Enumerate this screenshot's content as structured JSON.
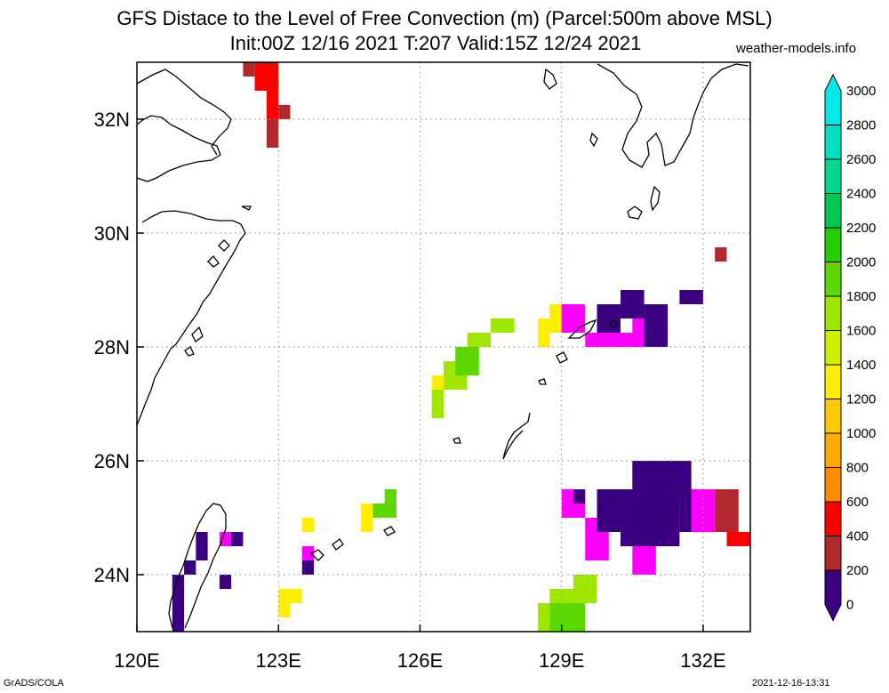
{
  "header": {
    "title_line1": "GFS Distace to the Level of Free Convection (m) (Parcel:500m above MSL)",
    "title_line2": "Init:00Z 12/16 2021 T:207 Valid:15Z 12/24 2021",
    "site": "weather-models.info"
  },
  "footer": {
    "credit": "GrADS/COLA",
    "timestamp": "2021-12-16-13:31"
  },
  "map": {
    "lon_range": [
      120,
      133
    ],
    "lat_range": [
      23,
      33
    ],
    "lon_ticks": [
      "120E",
      "123E",
      "126E",
      "129E",
      "132E"
    ],
    "lat_ticks": [
      "24N",
      "26N",
      "28N",
      "30N",
      "32N"
    ],
    "gridlines": "dotted"
  },
  "colorbar": {
    "labels": [
      "0",
      "200",
      "400",
      "600",
      "800",
      "1000",
      "1200",
      "1400",
      "1600",
      "1800",
      "2000",
      "2200",
      "2400",
      "2600",
      "2800",
      "3000"
    ],
    "colors": [
      "#3a0080",
      "#ff00ff",
      "#b2282c",
      "#ff0000",
      "#ff8c00",
      "#ffaa00",
      "#ffc800",
      "#ffee00",
      "#cfee00",
      "#a0e600",
      "#5ad800",
      "#22d000",
      "#00c850",
      "#00d890",
      "#00e0c0",
      "#00e8e8"
    ]
  },
  "fields": [
    {
      "level": "400",
      "cells": [
        [
          122.25,
          32.75,
          122.5,
          33
        ],
        [
          122.5,
          32.5,
          122.75,
          32.75
        ],
        [
          122.75,
          31.5,
          123,
          32.75
        ],
        [
          123,
          32,
          123.25,
          32.25
        ],
        [
          131.75,
          28.75,
          132,
          29
        ],
        [
          132.25,
          29.5,
          132.5,
          29.75
        ],
        [
          132.25,
          24.75,
          132.75,
          25.5
        ]
      ]
    },
    {
      "level": "600",
      "cells": [
        [
          122.5,
          32.5,
          123,
          33
        ],
        [
          122.75,
          32,
          123,
          32.5
        ],
        [
          132.5,
          24.5,
          133,
          24.75
        ]
      ]
    },
    {
      "level": "200",
      "cells": [
        [
          128.75,
          28.25,
          129.5,
          28.75
        ],
        [
          129.5,
          28,
          130.25,
          28.25
        ],
        [
          130.25,
          28,
          130.75,
          28.25
        ],
        [
          130.5,
          28.25,
          130.75,
          28.5
        ],
        [
          129,
          25,
          129.5,
          25.5
        ],
        [
          129.5,
          24.25,
          130,
          25
        ],
        [
          130.5,
          24,
          131,
          24.5
        ],
        [
          131.5,
          24.75,
          132.25,
          25.5
        ],
        [
          132,
          25.25,
          132.25,
          25.5
        ],
        [
          123.5,
          24.25,
          123.75,
          24.5
        ],
        [
          121.75,
          24.5,
          122,
          24.75
        ]
      ]
    },
    {
      "level": "0",
      "cells": [
        [
          129.75,
          28.25,
          130.25,
          28.75
        ],
        [
          130.25,
          28.5,
          130.75,
          29
        ],
        [
          130.75,
          28,
          131.25,
          28.75
        ],
        [
          131.5,
          28.75,
          132,
          29
        ],
        [
          129.75,
          24.75,
          130.25,
          25.5
        ],
        [
          130.25,
          24.5,
          131.5,
          25.5
        ],
        [
          130.5,
          25.5,
          131.75,
          26
        ],
        [
          131.5,
          24.75,
          131.75,
          25.5
        ],
        [
          131.5,
          25.25,
          131.75,
          25.5
        ],
        [
          121.25,
          24.25,
          121.5,
          24.75
        ],
        [
          121,
          24,
          121.25,
          24.25
        ],
        [
          120.75,
          23.5,
          121,
          24
        ],
        [
          120.75,
          23.25,
          121,
          23.5
        ],
        [
          120.75,
          23,
          121,
          23.25
        ],
        [
          121.75,
          23.75,
          122,
          24
        ],
        [
          123.5,
          24,
          123.75,
          24.25
        ],
        [
          122,
          24.5,
          122.25,
          24.75
        ],
        [
          129.25,
          25.25,
          129.5,
          25.5
        ]
      ]
    },
    {
      "level": "1400",
      "cells": [
        [
          128.5,
          28,
          128.75,
          28.5
        ],
        [
          128.75,
          28.25,
          129,
          28.75
        ],
        [
          123,
          23.25,
          123.25,
          23.75
        ],
        [
          123.25,
          23.5,
          123.5,
          23.75
        ],
        [
          128.5,
          23.25,
          128.75,
          23.5
        ],
        [
          126.25,
          27.25,
          126.5,
          27.5
        ],
        [
          124.75,
          24.75,
          125,
          25.25
        ],
        [
          123.5,
          24.75,
          123.75,
          25
        ]
      ]
    },
    {
      "level": "1800",
      "cells": [
        [
          127,
          28,
          127.5,
          28.25
        ],
        [
          127.5,
          28.25,
          128,
          28.5
        ],
        [
          126.5,
          27.25,
          127,
          27.75
        ],
        [
          126.25,
          26.75,
          126.5,
          27.25
        ],
        [
          128.5,
          23,
          128.75,
          23.5
        ],
        [
          128.75,
          23,
          129.5,
          23.75
        ],
        [
          129.25,
          23.5,
          129.75,
          24
        ]
      ]
    },
    {
      "level": "2000",
      "cells": [
        [
          126.75,
          27.5,
          127.25,
          28
        ],
        [
          125,
          25,
          125.5,
          25.25
        ],
        [
          125.25,
          25.25,
          125.5,
          25.5
        ],
        [
          128.75,
          23,
          129.5,
          23.5
        ]
      ]
    }
  ]
}
